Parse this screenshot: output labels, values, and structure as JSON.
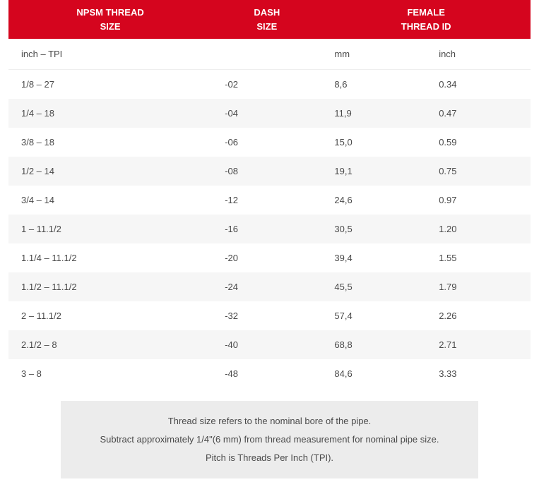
{
  "colors": {
    "header_bg": "#d5051e",
    "header_text": "#ffffff",
    "body_text": "#4a4a4a",
    "stripe_bg": "#f6f6f6",
    "plain_bg": "#ffffff",
    "notes_bg": "#ececec",
    "border": "#eeeeee"
  },
  "table": {
    "headers": {
      "npsm": {
        "line1": "NPSM THREAD",
        "line2": "SIZE"
      },
      "dash": {
        "line1": "DASH",
        "line2": "SIZE"
      },
      "female": {
        "line1": "FEMALE",
        "line2": "THREAD ID"
      }
    },
    "subheader": {
      "npsm": "inch – TPI",
      "dash": "",
      "mm": "mm",
      "inch": "inch"
    },
    "rows": [
      {
        "npsm": "1/8 – 27",
        "dash": "-02",
        "mm": "8,6",
        "inch": "0.34"
      },
      {
        "npsm": "1/4 – 18",
        "dash": "-04",
        "mm": "11,9",
        "inch": "0.47"
      },
      {
        "npsm": "3/8 – 18",
        "dash": "-06",
        "mm": "15,0",
        "inch": "0.59"
      },
      {
        "npsm": "1/2 – 14",
        "dash": "-08",
        "mm": "19,1",
        "inch": "0.75"
      },
      {
        "npsm": "3/4 – 14",
        "dash": "-12",
        "mm": "24,6",
        "inch": "0.97"
      },
      {
        "npsm": "1 – 11.1/2",
        "dash": "-16",
        "mm": "30,5",
        "inch": "1.20"
      },
      {
        "npsm": "1.1/4 – 11.1/2",
        "dash": "-20",
        "mm": "39,4",
        "inch": "1.55"
      },
      {
        "npsm": "1.1/2 – 11.1/2",
        "dash": "-24",
        "mm": "45,5",
        "inch": "1.79"
      },
      {
        "npsm": "2 – 11.1/2",
        "dash": "-32",
        "mm": "57,4",
        "inch": "2.26"
      },
      {
        "npsm": "2.1/2 – 8",
        "dash": "-40",
        "mm": "68,8",
        "inch": "2.71"
      },
      {
        "npsm": "3 – 8",
        "dash": "-48",
        "mm": "84,6",
        "inch": "3.33"
      }
    ]
  },
  "notes": {
    "line1": "Thread size refers to the nominal bore of the pipe.",
    "line2": "Subtract approximately 1/4\"(6 mm) from thread measurement for nominal pipe size.",
    "line3": "Pitch is Threads Per Inch (TPI)."
  }
}
